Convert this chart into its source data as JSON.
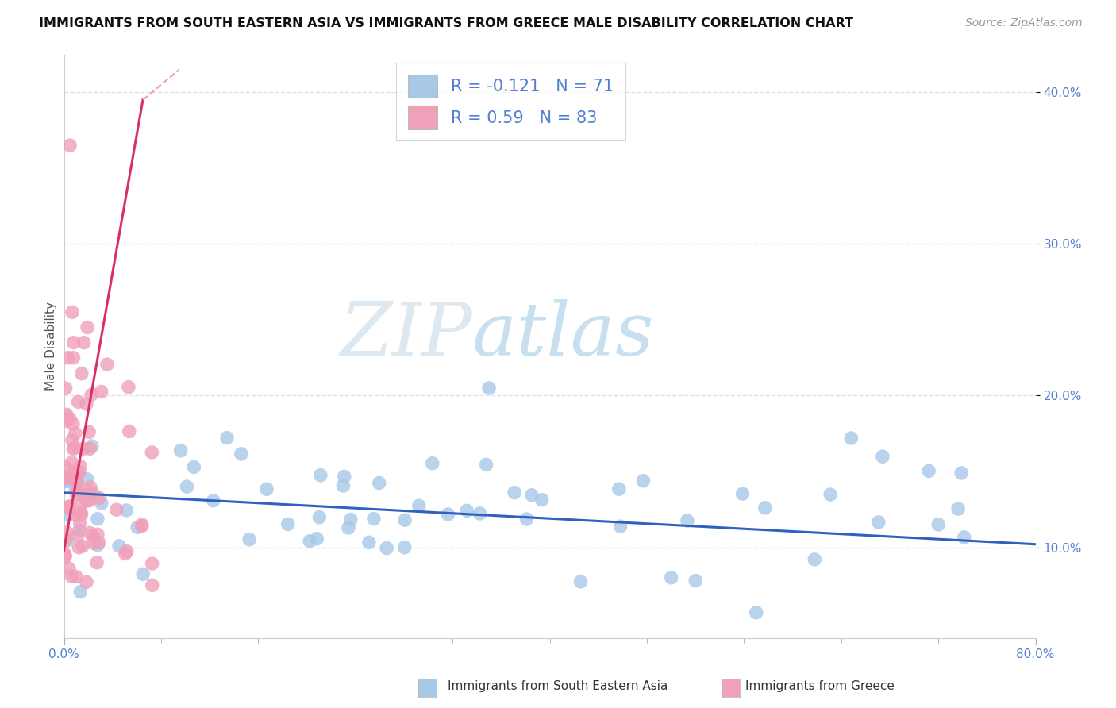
{
  "title": "IMMIGRANTS FROM SOUTH EASTERN ASIA VS IMMIGRANTS FROM GREECE MALE DISABILITY CORRELATION CHART",
  "source": "Source: ZipAtlas.com",
  "ylabel": "Male Disability",
  "x_min": 0.0,
  "x_max": 0.8,
  "y_min": 0.04,
  "y_max": 0.425,
  "y_ticks": [
    0.1,
    0.2,
    0.3,
    0.4
  ],
  "y_tick_labels": [
    "10.0%",
    "20.0%",
    "30.0%",
    "40.0%"
  ],
  "x_tick_left": "0.0%",
  "x_tick_right": "80.0%",
  "legend_label_1": "Immigrants from South Eastern Asia",
  "legend_label_2": "Immigrants from Greece",
  "color_blue": "#a8c8e8",
  "color_pink": "#f0a0b8",
  "color_blue_line": "#3060c0",
  "color_pink_line": "#d83060",
  "color_pink_dash": "#e8a0b0",
  "R1": -0.121,
  "N1": 71,
  "R2": 0.59,
  "N2": 83,
  "watermark_zip": "ZIP",
  "watermark_atlas": "atlas",
  "background_color": "#ffffff",
  "grid_color": "#e0e0e0",
  "title_color": "#111111",
  "source_color": "#999999",
  "axis_label_color": "#555555",
  "tick_color": "#5080d0"
}
